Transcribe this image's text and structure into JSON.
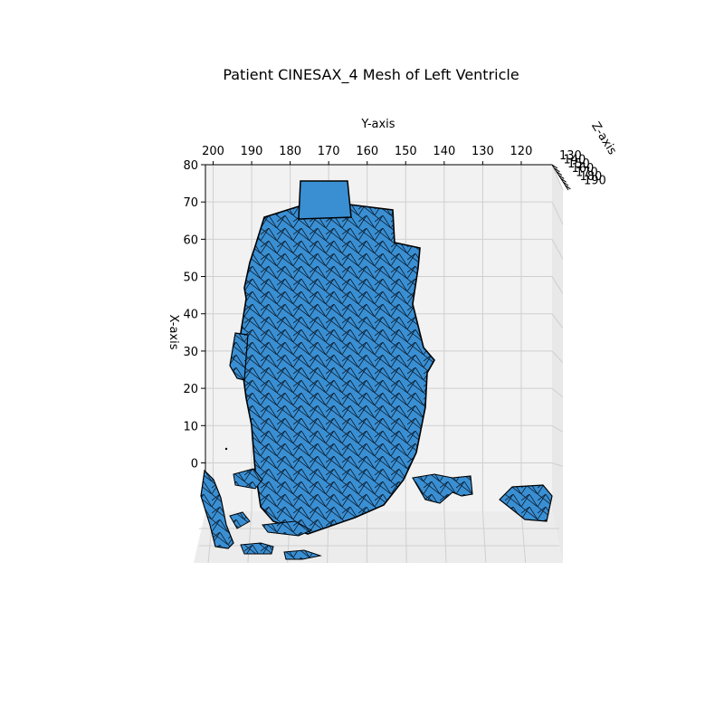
{
  "chart_data": {
    "type": "3d-mesh",
    "title": "Patient CINESAX_4 Mesh of Left Ventricle",
    "view": "top-down 3D surface (elevation ~90°)",
    "grid": true,
    "x_axis": {
      "label": "X-axis",
      "ticks": [
        0,
        10,
        20,
        30,
        40,
        50,
        60,
        70,
        80
      ],
      "range": [
        -13,
        80
      ]
    },
    "y_axis": {
      "label": "Y-axis",
      "ticks": [
        200,
        190,
        180,
        170,
        160,
        150,
        140,
        130,
        120
      ],
      "range": [
        202,
        112
      ],
      "reversed": true
    },
    "z_axis": {
      "label": "Z-axis",
      "ticks": [
        130,
        140,
        150,
        160,
        170,
        180,
        190
      ],
      "tick_labels_overlapping": true
    },
    "mesh": {
      "color": "#3a8fd3",
      "edge_color": "#000000",
      "main_body": {
        "y_extent": [
          145,
          190
        ],
        "x_extent": [
          -5,
          78
        ],
        "top_plateau": {
          "y_extent": [
            164,
            174
          ],
          "x_top": 78
        }
      },
      "fragments": [
        {
          "name": "left-lower-fragment",
          "y_center": 199,
          "x_center": -3
        },
        {
          "name": "right-fragment",
          "y_center": 132,
          "x_center": 0
        },
        {
          "name": "bottom-strip",
          "y_center": 182,
          "x_center": -7
        },
        {
          "name": "lower-right-patch",
          "y_center": 142,
          "x_center": 5
        }
      ]
    }
  }
}
